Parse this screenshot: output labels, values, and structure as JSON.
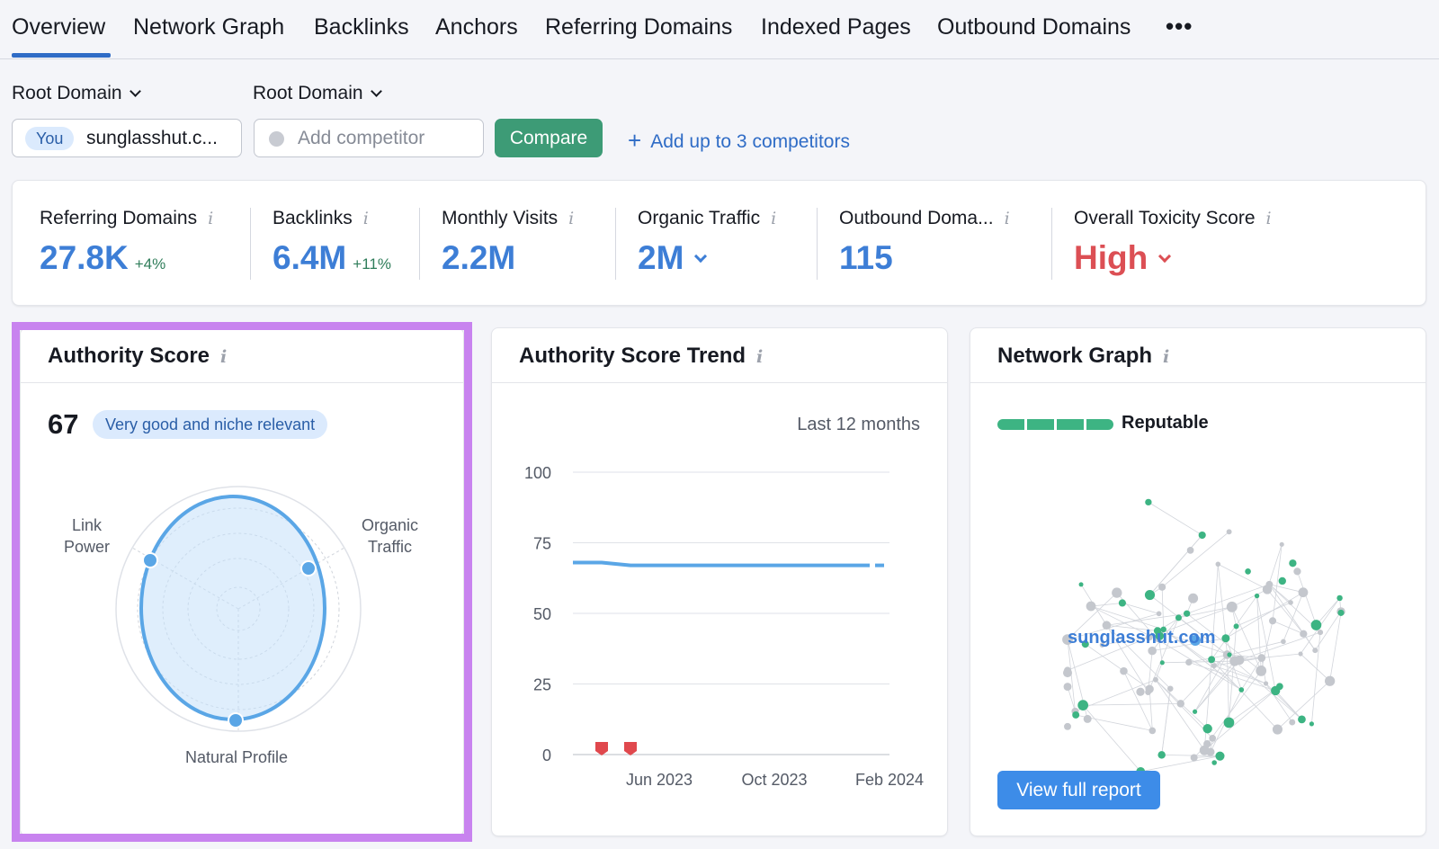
{
  "tabs": [
    {
      "label": "Overview",
      "active": true
    },
    {
      "label": "Network Graph"
    },
    {
      "label": "Backlinks"
    },
    {
      "label": "Anchors"
    },
    {
      "label": "Referring Domains"
    },
    {
      "label": "Indexed Pages"
    },
    {
      "label": "Outbound Domains"
    }
  ],
  "tab_more": "•••",
  "selectors": {
    "left_scope": "Root Domain",
    "right_scope": "Root Domain",
    "you_badge": "You",
    "domain": "sunglasshut.c...",
    "competitor_placeholder": "Add competitor",
    "compare_label": "Compare",
    "add_competitors_label": "Add up to 3 competitors"
  },
  "metrics": [
    {
      "label": "Referring Domains",
      "value": "27.8K",
      "delta": "+4%"
    },
    {
      "label": "Backlinks",
      "value": "6.4M",
      "delta": "+11%"
    },
    {
      "label": "Monthly Visits",
      "value": "2.2M"
    },
    {
      "label": "Organic Traffic",
      "value": "2M"
    },
    {
      "label": "Outbound Doma...",
      "value": "115"
    },
    {
      "label": "Overall Toxicity Score",
      "value": "High"
    }
  ],
  "authority_score": {
    "title": "Authority Score",
    "score": "67",
    "badge": "Very good and niche relevant",
    "axes": {
      "link_power_line1": "Link",
      "link_power_line2": "Power",
      "organic_traffic_line1": "Organic",
      "organic_traffic_line2": "Traffic",
      "natural_profile": "Natural Profile"
    }
  },
  "trend": {
    "title": "Authority Score Trend",
    "period": "Last 12 months"
  },
  "network": {
    "title": "Network Graph",
    "status": "Reputable",
    "status_level": 4,
    "domain": "sunglasshut.com",
    "button": "View full report"
  },
  "colors": {
    "accent": "#2f6cc6",
    "compare_green": "#3d9b76",
    "metric_blue": "#3d7ed6",
    "toxicity_red": "#dc4f54",
    "reputable_green": "#3db483",
    "highlight_purple": "#c883ef",
    "line_blue": "#5aa6e6",
    "marker_red": "#e0484d"
  },
  "chart_data": {
    "type": "line",
    "title": "Authority Score Trend",
    "x_ticks": [
      "Jun 2023",
      "Oct 2023",
      "Feb 2024"
    ],
    "y_ticks": [
      0,
      25,
      50,
      75,
      100
    ],
    "ylim": [
      0,
      100
    ],
    "grid": true,
    "series": [
      {
        "x": [
          "Mar 2023",
          "Apr 2023",
          "May 2023",
          "Jun 2023",
          "Jul 2023",
          "Aug 2023",
          "Sep 2023",
          "Oct 2023",
          "Nov 2023",
          "Dec 2023",
          "Jan 2024",
          "Feb 2024"
        ],
        "values": [
          68,
          68,
          67,
          67,
          67,
          67,
          67,
          67,
          67,
          67,
          67,
          67
        ]
      }
    ],
    "markers": [
      "Apr 2023",
      "May 2023"
    ]
  }
}
